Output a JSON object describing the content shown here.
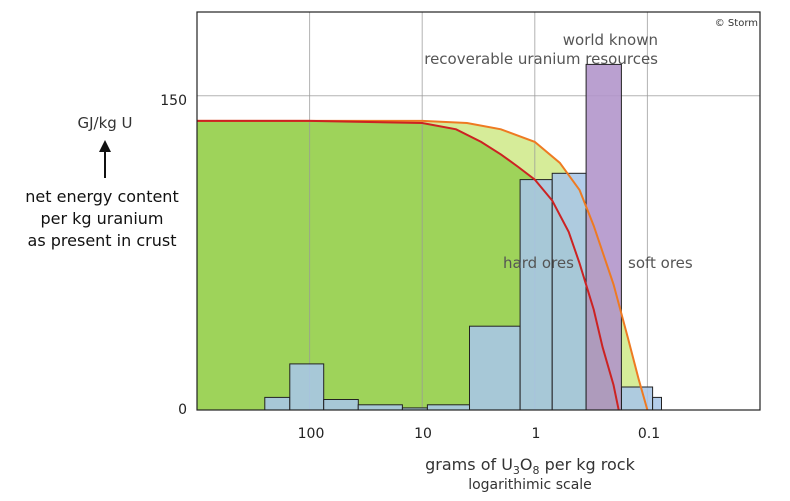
{
  "chart_data": {
    "type": "bar",
    "x_scale": "log-reversed",
    "xlim": [
      1000,
      0.01
    ],
    "ylim": [
      0,
      190
    ],
    "x_ticks": [
      "100",
      "10",
      "1",
      "0.1"
    ],
    "y_ticks": [
      "0",
      "150"
    ],
    "y_label": "GJ/kg U",
    "y_description": [
      "net energy content",
      "per kg uranium",
      "as present in crust"
    ],
    "x_label": {
      "prefix": "grams of U",
      "sub1": "3",
      "mid": "O",
      "sub2": "8",
      "suffix": " per kg rock"
    },
    "x_sublabel": "logarithimic scale",
    "copyright": "© Storm",
    "bars_title": [
      "world known",
      "recoverable uranium resources"
    ],
    "bars": [
      {
        "x0": 250,
        "x1": 150,
        "value": 6
      },
      {
        "x0": 150,
        "x1": 75,
        "value": 22
      },
      {
        "x0": 75,
        "x1": 37,
        "value": 5
      },
      {
        "x0": 37,
        "x1": 15,
        "value": 2.5
      },
      {
        "x0": 15,
        "x1": 9,
        "value": 1
      },
      {
        "x0": 9,
        "x1": 3.8,
        "value": 2.5
      },
      {
        "x0": 3.8,
        "x1": 1.35,
        "value": 40
      },
      {
        "x0": 1.35,
        "x1": 0.7,
        "value": 110
      },
      {
        "x0": 0.7,
        "x1": 0.35,
        "value": 113
      },
      {
        "x0": 0.35,
        "x1": 0.17,
        "value": 165
      },
      {
        "x0": 0.17,
        "x1": 0.09,
        "value": 11
      },
      {
        "x0": 0.09,
        "x1": 0.075,
        "value": 6
      }
    ],
    "curves": [
      {
        "name": "hard ores",
        "color": "#cc2222",
        "points": [
          [
            1000,
            138
          ],
          [
            100,
            138
          ],
          [
            10,
            137
          ],
          [
            5,
            134
          ],
          [
            3,
            128
          ],
          [
            2,
            122
          ],
          [
            1.4,
            116
          ],
          [
            1,
            110
          ],
          [
            0.7,
            100
          ],
          [
            0.5,
            85
          ],
          [
            0.4,
            70
          ],
          [
            0.3,
            48
          ],
          [
            0.25,
            30
          ],
          [
            0.2,
            12
          ],
          [
            0.18,
            0
          ]
        ]
      },
      {
        "name": "soft ores",
        "color": "#ee7a22",
        "points": [
          [
            1000,
            138
          ],
          [
            100,
            138
          ],
          [
            10,
            138
          ],
          [
            4,
            137
          ],
          [
            2,
            134
          ],
          [
            1,
            128
          ],
          [
            0.6,
            118
          ],
          [
            0.4,
            105
          ],
          [
            0.3,
            88
          ],
          [
            0.2,
            60
          ],
          [
            0.15,
            35
          ],
          [
            0.12,
            15
          ],
          [
            0.1,
            0
          ]
        ]
      }
    ],
    "colors": {
      "fill_green": "#9ed35a",
      "fill_lightgreen": "#d6ec99",
      "bar_blue": "#a9c6e8",
      "bar_purple": "#b193c9"
    }
  }
}
